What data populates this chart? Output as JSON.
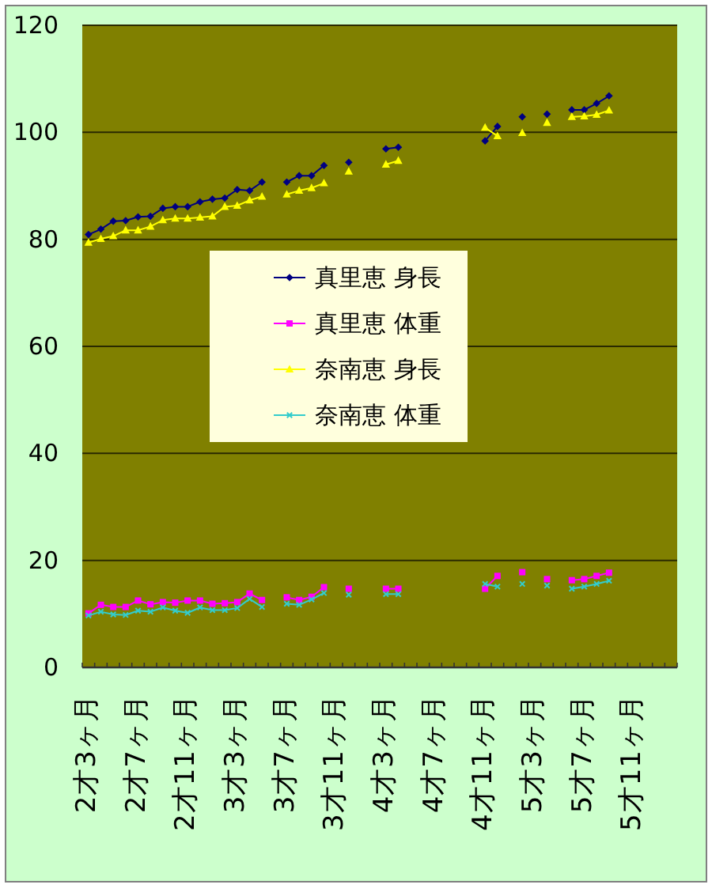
{
  "chart_data": {
    "type": "line",
    "categories": [
      "2才3ヶ月",
      null,
      null,
      null,
      "2才7ヶ月",
      null,
      null,
      null,
      "2才11ヶ月",
      null,
      null,
      null,
      "3才3ヶ月",
      null,
      null,
      null,
      "3才7ヶ月",
      null,
      null,
      null,
      "3才11ヶ月",
      null,
      null,
      null,
      "4才3ヶ月",
      null,
      null,
      null,
      "4才7ヶ月",
      null,
      null,
      null,
      "4才11ヶ月",
      null,
      null,
      null,
      "5才3ヶ月",
      null,
      null,
      null,
      "5才7ヶ月",
      null,
      null,
      null,
      "5才11ヶ月",
      null,
      null,
      null
    ],
    "ylim": [
      0,
      120
    ],
    "yticks": [
      0,
      20,
      40,
      60,
      80,
      100,
      120
    ],
    "grid": "y",
    "legend": "center",
    "series": [
      {
        "name": "真里恵 身長",
        "color": "#000080",
        "marker": "diamond",
        "values": [
          80.9,
          81.9,
          83.4,
          83.5,
          84.2,
          84.3,
          85.8,
          86.1,
          86.1,
          87.0,
          87.5,
          87.7,
          89.3,
          89.1,
          90.7,
          null,
          90.7,
          91.9,
          91.9,
          93.8,
          null,
          94.4,
          null,
          null,
          96.9,
          97.2,
          null,
          null,
          null,
          null,
          null,
          null,
          98.4,
          101.1,
          null,
          102.9,
          null,
          103.4,
          null,
          104.2,
          104.2,
          105.4,
          106.8,
          null,
          null,
          null,
          null,
          null
        ]
      },
      {
        "name": "真里恵 体重",
        "color": "#ff00ff",
        "marker": "square",
        "values": [
          10.1,
          11.7,
          11.3,
          11.3,
          12.5,
          11.8,
          12.2,
          12.1,
          12.5,
          12.5,
          11.9,
          12.0,
          12.2,
          13.8,
          12.6,
          null,
          13.1,
          12.6,
          13.2,
          15.0,
          null,
          14.7,
          null,
          null,
          14.7,
          14.7,
          null,
          null,
          null,
          null,
          null,
          null,
          14.7,
          17.1,
          null,
          17.8,
          null,
          16.5,
          null,
          16.3,
          16.5,
          17.1,
          17.7,
          null,
          null,
          null,
          null,
          null
        ]
      },
      {
        "name": "奈南恵 身長",
        "color": "#ffff00",
        "marker": "triangle",
        "values": [
          79.4,
          80.1,
          80.6,
          81.7,
          81.7,
          82.4,
          83.6,
          83.9,
          83.9,
          84.1,
          84.3,
          86.1,
          86.3,
          87.3,
          88.0,
          null,
          88.4,
          89.1,
          89.6,
          90.5,
          null,
          92.7,
          null,
          null,
          94.0,
          94.7,
          null,
          null,
          null,
          null,
          null,
          null,
          100.9,
          99.3,
          null,
          99.9,
          null,
          101.8,
          null,
          102.9,
          103.0,
          103.3,
          104.1,
          null,
          null,
          null,
          null,
          null
        ]
      },
      {
        "name": "奈南恵 体重",
        "color": "#33cccc",
        "marker": "cross",
        "values": [
          9.7,
          10.4,
          9.9,
          9.8,
          10.6,
          10.4,
          11.2,
          10.6,
          10.2,
          11.2,
          10.7,
          10.7,
          11.1,
          12.8,
          11.3,
          null,
          11.9,
          11.7,
          12.7,
          13.9,
          null,
          13.6,
          null,
          null,
          13.7,
          13.7,
          null,
          null,
          null,
          null,
          null,
          null,
          15.6,
          15.1,
          null,
          15.6,
          null,
          15.3,
          null,
          14.7,
          15.1,
          15.6,
          16.2,
          null,
          null,
          null,
          null,
          null
        ]
      }
    ]
  }
}
